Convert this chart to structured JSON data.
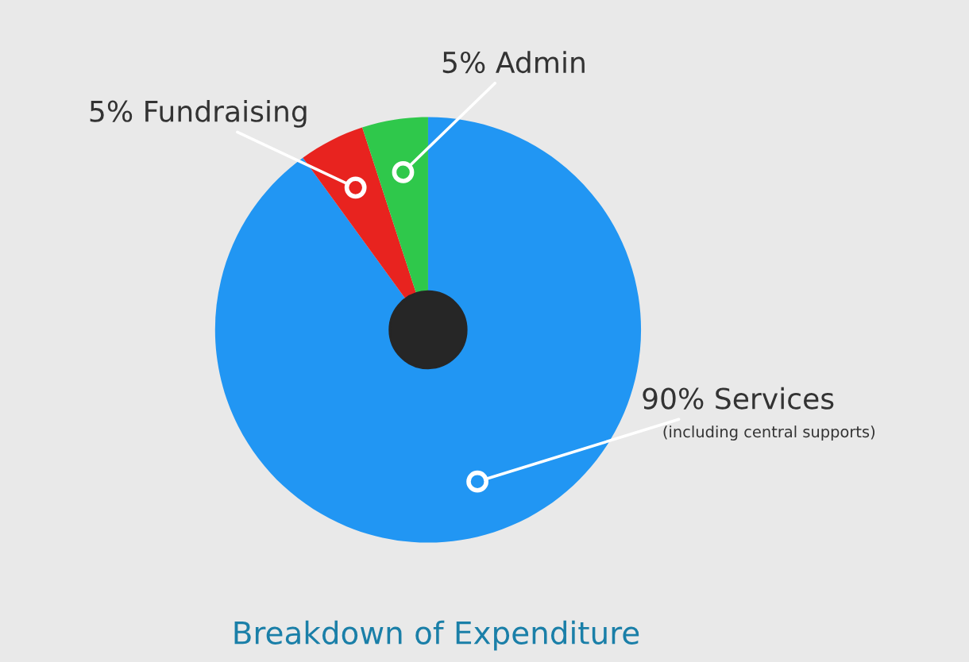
{
  "chart_data": {
    "type": "pie",
    "title": "Breakdown of Expenditure",
    "categories": [
      "Services",
      "Fundraising",
      "Admin"
    ],
    "values": [
      90,
      5,
      5
    ],
    "value_labels": [
      "90%",
      "5%",
      "5%"
    ],
    "colors": [
      "#2196f3",
      "#e8231f",
      "#2fc84b"
    ],
    "annotations": [
      "(including central supports)"
    ],
    "legend": false
  }
}
